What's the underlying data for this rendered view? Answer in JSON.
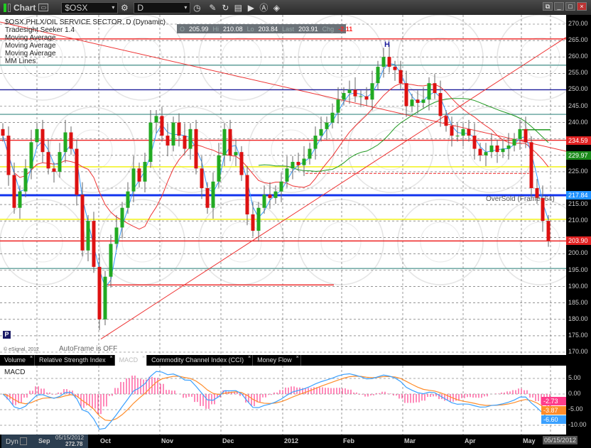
{
  "toolbar": {
    "title": "Chart",
    "symbol": "$OSX",
    "interval": "D",
    "icons": [
      "link-icon",
      "symbol-settings-icon",
      "interval-clock-icon",
      "pencil-icon",
      "refresh-icon",
      "news-icon",
      "play-icon",
      "alert-icon",
      "eraser-icon"
    ]
  },
  "legend": [
    "$OSX,PHLX/OIL SERVICE SECTOR, D (Dynamic)",
    "Tradesight Seeker 1.4",
    "Moving Average",
    "Moving Average",
    "Moving Average",
    "MM Lines"
  ],
  "ohlc": {
    "o_label": "O",
    "o": "205.99",
    "h_label": "Hi",
    "h": "210.08",
    "l_label": "Lo",
    "l": "203.84",
    "last_label": "Last",
    "last": "203.91",
    "chg_label": "Chg",
    "chg": "-2.11"
  },
  "annotations": {
    "high_marker": "H",
    "oversold": "OverSold (Frame: 64)",
    "autoframe": "AutoFrame is OFF",
    "copyright": "© eSignal, 2012",
    "p_marker": "P"
  },
  "tabs": [
    {
      "label": "Volume"
    },
    {
      "label": "Relative Strength Index"
    },
    {
      "label": "MACD",
      "active": true
    },
    {
      "label": "Commodity Channel Index (CCI)"
    },
    {
      "label": "Money Flow"
    }
  ],
  "macd_panel": {
    "title": "MACD",
    "axis_labels": [
      "5.00",
      "0.00",
      "-5.00",
      "-10.00"
    ],
    "tags": {
      "hist": "-2.73",
      "signal": "-3.87",
      "macd": "-6.60"
    }
  },
  "date_axis": [
    "Sep",
    "Oct",
    "Nov",
    "Dec",
    "2012",
    "Feb",
    "Mar",
    "Apr",
    "May"
  ],
  "cursor_date": "05/15/2012",
  "infobox": {
    "mode": "Dyn",
    "date": "05/15/2012",
    "value": "272.78"
  },
  "price_tags": [
    {
      "value": "234.59",
      "color": "#e02020"
    },
    {
      "value": "229.97",
      "color": "#1a8a1a"
    },
    {
      "value": "217.84",
      "color": "#1e90ff"
    },
    {
      "value": "203.90",
      "color": "#e02020"
    }
  ],
  "colors": {
    "up": "#22aa22",
    "down": "#dd1111",
    "ma_fast": "#3399ff",
    "ma_slow": "#ee3333",
    "ma_mid": "#229922",
    "hist": "#ff3d8b",
    "macd": "#3aa0ff",
    "signal": "#ff8c2a"
  },
  "chart_data": {
    "type": "candlestick",
    "ylim": [
      170,
      270
    ],
    "ytick_step": 5,
    "closes": [
      236,
      224,
      214,
      219,
      226,
      234,
      238,
      231,
      226,
      225,
      231,
      237,
      232,
      218,
      201,
      210,
      196,
      180,
      193,
      203,
      208,
      214,
      219,
      226,
      222,
      228,
      240,
      242,
      236,
      233,
      240,
      236,
      232,
      238,
      226,
      220,
      214,
      222,
      230,
      238,
      230,
      231,
      224,
      212,
      207,
      214,
      218,
      217,
      219,
      222,
      226,
      228,
      227,
      229,
      232,
      236,
      238,
      240,
      243,
      247,
      249,
      250,
      248,
      248,
      247,
      252,
      257,
      260,
      257,
      256,
      252,
      245,
      247,
      246,
      247,
      252,
      249,
      242,
      239,
      236,
      236,
      238,
      236,
      232,
      230,
      231,
      233,
      231,
      232,
      233,
      235,
      238,
      234,
      220,
      217,
      210,
      203.91
    ],
    "horizontal_levels": [
      {
        "price": 265.5,
        "color": "#ee2222"
      },
      {
        "price": 257.5,
        "color": "#5f9f9a"
      },
      {
        "price": 250,
        "color": "#1a1a99"
      },
      {
        "price": 242.5,
        "color": "#5f9f9a"
      },
      {
        "price": 234.59,
        "color": "#ee2222"
      },
      {
        "price": 226.5,
        "color": "#f0f000"
      },
      {
        "price": 217.84,
        "color": "#1133ee"
      },
      {
        "price": 210.5,
        "color": "#f0f000"
      },
      {
        "price": 203.9,
        "color": "#ee2222"
      },
      {
        "price": 195.5,
        "color": "#5f9f9a"
      }
    ]
  }
}
